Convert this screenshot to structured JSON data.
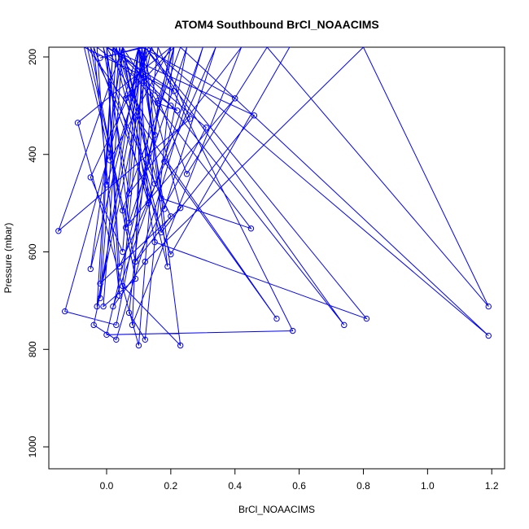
{
  "chart_data": {
    "type": "line",
    "title": "ATOM4 Southbound BrCl_NOAACIMS",
    "xlabel": "BrCl_NOAACIMS",
    "ylabel": "Pressure (mbar)",
    "xlim": [
      -0.18,
      1.24
    ],
    "ylim": [
      1045,
      180
    ],
    "y_reversed": true,
    "x_ticks": [
      0.0,
      0.2,
      0.4,
      0.6,
      0.8,
      1.0,
      1.2
    ],
    "x_tick_labels": [
      "0.0",
      "0.2",
      "0.4",
      "0.6",
      "0.8",
      "1.0",
      "1.2"
    ],
    "y_ticks": [
      200,
      400,
      600,
      800,
      1000
    ],
    "y_tick_labels": [
      "200",
      "400",
      "600",
      "800",
      "1000"
    ],
    "color": "#0000ff",
    "grid": false,
    "legend": "none",
    "series": [
      {
        "x": [
          0.2,
          0.03,
          -0.13,
          0.1,
          0.25,
          0.5,
          1.19,
          0.8,
          0.12,
          0.02,
          0.3,
          0.03,
          -0.04,
          0.14,
          0.58,
          0.0,
          0.21,
          0.12,
          0.07,
          0.16,
          0.26,
          -0.15,
          0.05,
          0.17,
          0.45,
          0.02,
          -0.03,
          0.12,
          0.05,
          0.23,
          0.11,
          0.09,
          0.2,
          -0.05,
          0.09,
          -0.01,
          0.05,
          0.15,
          0.81,
          0.12,
          0.08,
          0.42,
          0.07,
          -0.01,
          0.13,
          0.1,
          -0.02,
          0.04,
          0.15,
          0.05,
          0.27,
          0.57,
          0.2,
          -0.04,
          0.04,
          0.0,
          0.07,
          0.25,
          0.18,
          0.53,
          -0.06,
          0.09,
          0.31,
          0.02,
          0.2,
          0.74,
          0.12,
          -0.05,
          0.05,
          0.16,
          0.22,
          -0.03,
          0.0,
          0.13,
          1.19,
          0.23,
          0.05,
          -0.07,
          0.21,
          0.0,
          0.04,
          0.34,
          0.18,
          0.1,
          0.08,
          0.03,
          0.17,
          0.46,
          0.0,
          0.15,
          0.12,
          -0.02,
          0.11,
          0.06,
          0.4,
          0.11,
          0.19,
          0.02,
          -0.02,
          0.23,
          0.1,
          0.05,
          -0.05,
          0.14,
          0.06,
          0.21,
          0.16,
          0.1,
          -0.09,
          0.2,
          0.01,
          0.03,
          0.16
        ],
        "y": [
          180,
          750,
          722,
          180,
          440,
          180,
          712,
          180,
          620,
          712,
          180,
          780,
          750,
          180,
          762,
          770,
          180,
          780,
          725,
          180,
          327,
          557,
          180,
          490,
          552,
          180,
          712,
          180,
          670,
          792,
          180,
          620,
          527,
          180,
          655,
          712,
          180,
          580,
          737,
          180,
          750,
          180,
          480,
          180,
          500,
          180,
          695,
          180,
          460,
          180,
          180,
          180,
          605,
          180,
          690,
          180,
          540,
          180,
          415,
          737,
          180,
          620,
          345,
          180,
          300,
          750,
          180,
          635,
          180,
          295,
          310,
          180,
          462,
          180,
          772,
          180,
          515,
          180,
          270,
          180,
          630,
          180,
          512,
          180,
          280,
          180,
          560,
          320,
          180,
          360,
          180,
          202,
          180,
          550,
          285,
          180,
          630,
          180,
          665,
          510,
          180,
          600,
          447,
          180,
          285,
          180,
          290,
          792,
          335,
          180,
          412,
          180,
          180
        ]
      }
    ]
  }
}
